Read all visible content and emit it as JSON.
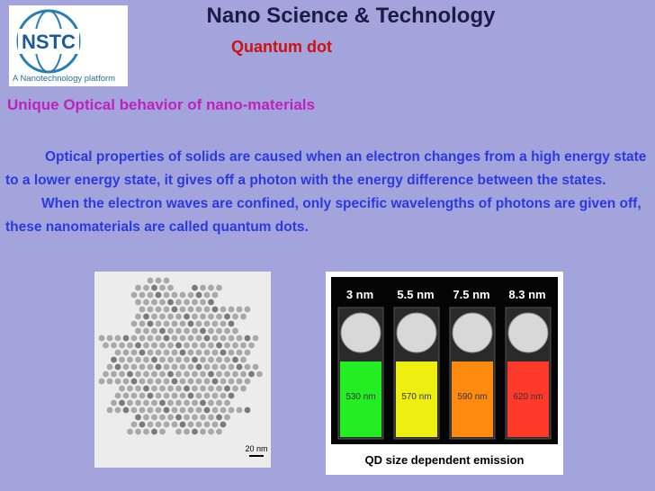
{
  "logo": {
    "acronym": "NSTC",
    "tagline": "A Nanotechnology platform"
  },
  "header": {
    "title": "Nano Science & Technology",
    "subtitle": "Quantum dot"
  },
  "section": {
    "heading": "Unique Optical behavior of nano-materials",
    "paragraphs": [
      "Optical properties of solids are caused when an electron changes from a high energy state to a lower energy state, it gives off a photon with the energy difference between the states.",
      "When the electron waves are confined, only specific wavelengths of photons are given off, these nanomaterials are called quantum dots."
    ]
  },
  "figures": [
    {
      "scale_bar": "20 nm"
    },
    {
      "sizes": [
        "3 nm",
        "5.5 nm",
        "7.5 nm",
        "8.3 nm"
      ],
      "emissions": [
        "530 nm",
        "570 nm",
        "590 nm",
        "620 nm"
      ],
      "caption": "QD size dependent emission"
    }
  ]
}
